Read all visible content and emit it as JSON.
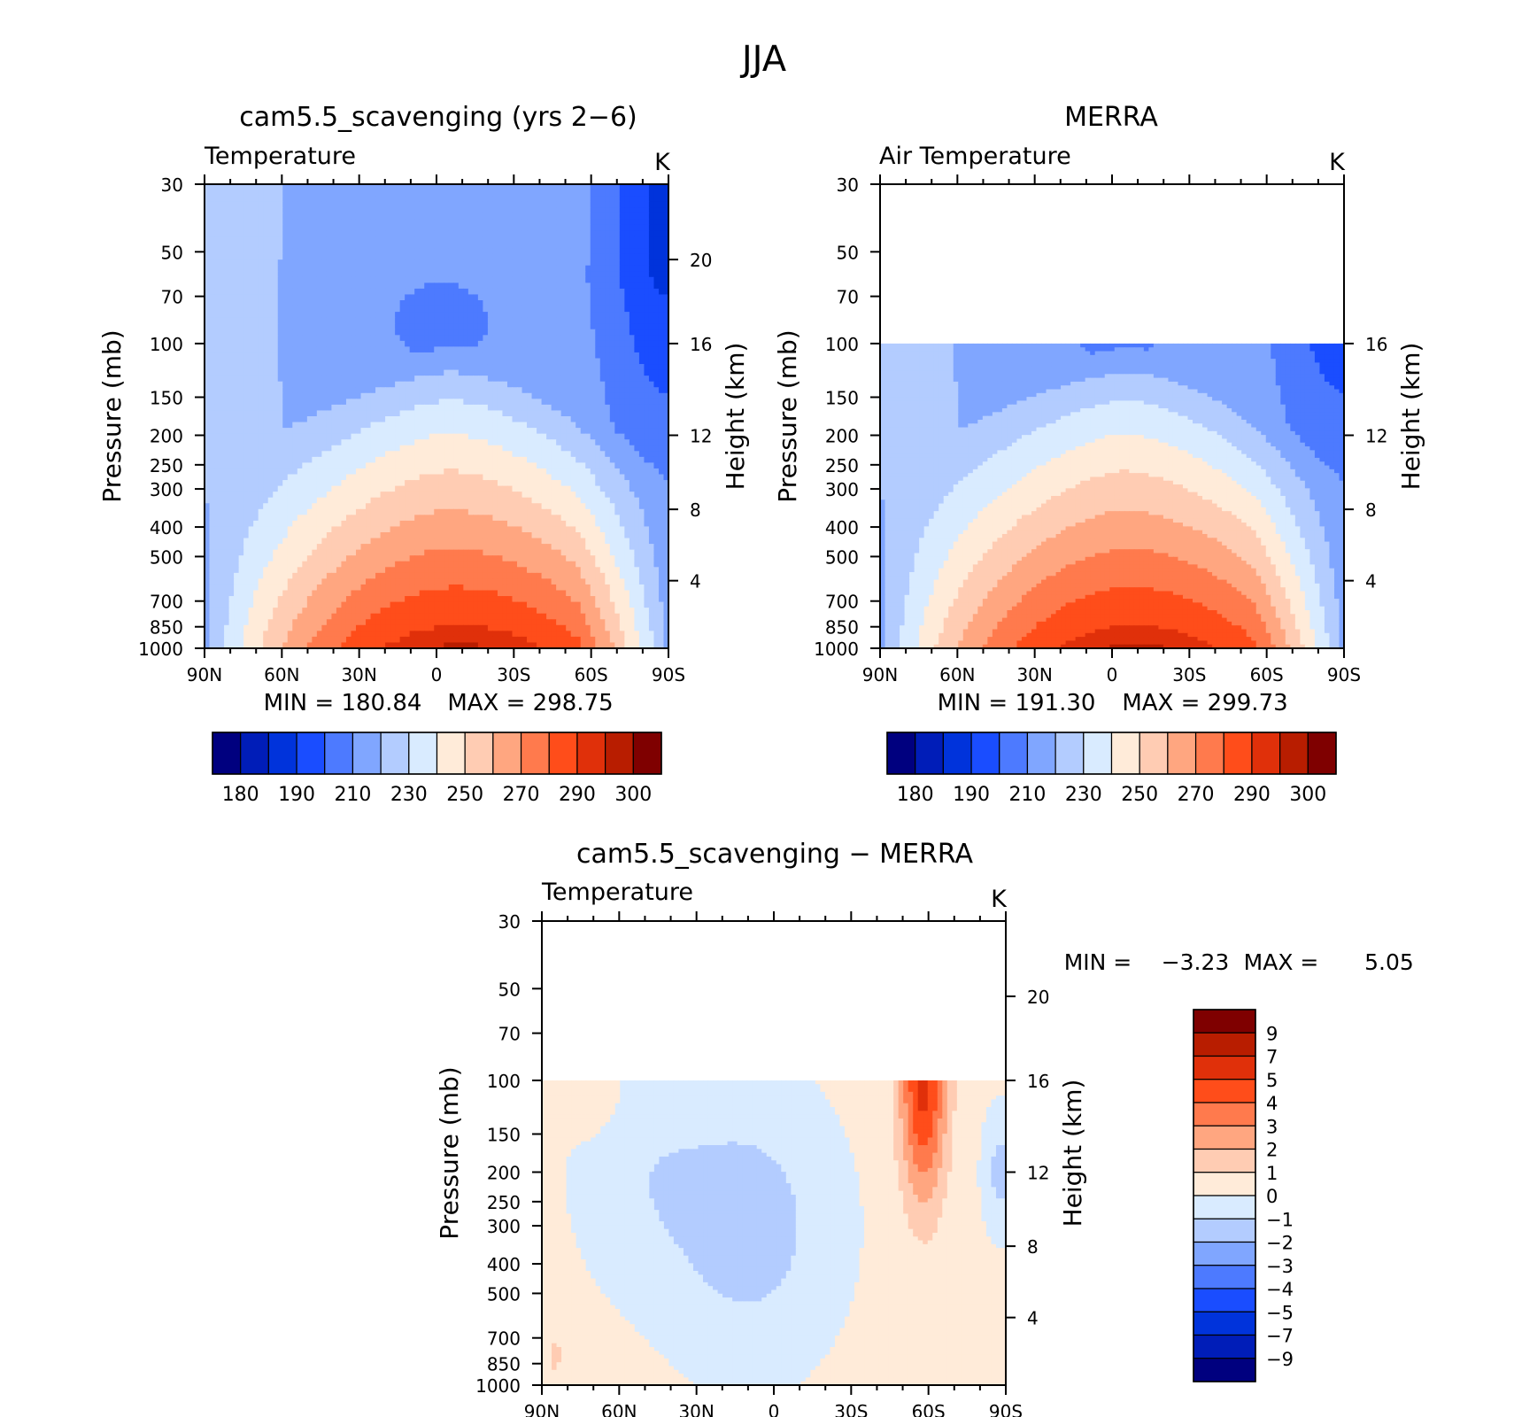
{
  "figure": {
    "title": "JJA"
  },
  "colors": {
    "abs": [
      "#00007f",
      "#001db8",
      "#0033db",
      "#1a4dff",
      "#4d7aff",
      "#80a6ff",
      "#b3ccff",
      "#d9ebff",
      "#ffebd9",
      "#ffccb3",
      "#ffa680",
      "#ff7a4d",
      "#ff4d1a",
      "#e0300a",
      "#b81d00",
      "#7f0000"
    ],
    "diff": [
      "#00007f",
      "#001db8",
      "#0033db",
      "#1a4dff",
      "#4d7aff",
      "#80a6ff",
      "#b3ccff",
      "#d9ebff",
      "#ffebd9",
      "#ffccb3",
      "#ffa680",
      "#ff7a4d",
      "#ff4d1a",
      "#e0300a",
      "#b81d00",
      "#7f0000"
    ]
  },
  "axes": {
    "pressure_ticks": [
      "30",
      "50",
      "70",
      "100",
      "150",
      "200",
      "250",
      "300",
      "400",
      "500",
      "700",
      "850",
      "1000"
    ],
    "lat_ticks": [
      "90N",
      "60N",
      "30N",
      "0",
      "30S",
      "60S",
      "90S"
    ],
    "ylabel_left": "Pressure (mb)",
    "ylabel_right": "Height (km)",
    "height_ticks_full": [
      "20",
      "16",
      "12",
      "8",
      "4"
    ],
    "height_ticks_merra": [
      "16",
      "12",
      "8",
      "4"
    ]
  },
  "chart_data": [
    {
      "type": "heatmap",
      "title": "cam5.5_scavenging (yrs 2−6)",
      "variable": "Temperature",
      "units": "K",
      "min_label": "MIN = 180.84",
      "max_label": "MAX = 298.75",
      "ylim_mb": [
        1000,
        30
      ],
      "xlim": [
        "90N",
        "90S"
      ],
      "colorbar_ticks": [
        "180",
        "190",
        "210",
        "230",
        "250",
        "270",
        "290",
        "300"
      ]
    },
    {
      "type": "heatmap",
      "title": "MERRA",
      "variable": "Air Temperature",
      "units": "K",
      "min_label": "MIN = 191.30",
      "max_label": "MAX = 299.73",
      "ylim_mb": [
        1000,
        30
      ],
      "data_top_mb": 100,
      "xlim": [
        "90N",
        "90S"
      ],
      "colorbar_ticks": [
        "180",
        "190",
        "210",
        "230",
        "250",
        "270",
        "290",
        "300"
      ]
    },
    {
      "type": "heatmap",
      "title": "cam5.5_scavenging − MERRA",
      "variable": "Temperature",
      "units": "K",
      "min_label": "MIN =",
      "min_value": "−3.23",
      "max_label": "MAX =",
      "max_value": "5.05",
      "ylim_mb": [
        1000,
        30
      ],
      "data_top_mb": 100,
      "xlim": [
        "90N",
        "90S"
      ],
      "colorbar_ticks": [
        "9",
        "7",
        "5",
        "4",
        "3",
        "2",
        "1",
        "0",
        "−1",
        "−2",
        "−3",
        "−4",
        "−5",
        "−7",
        "−9"
      ]
    }
  ]
}
